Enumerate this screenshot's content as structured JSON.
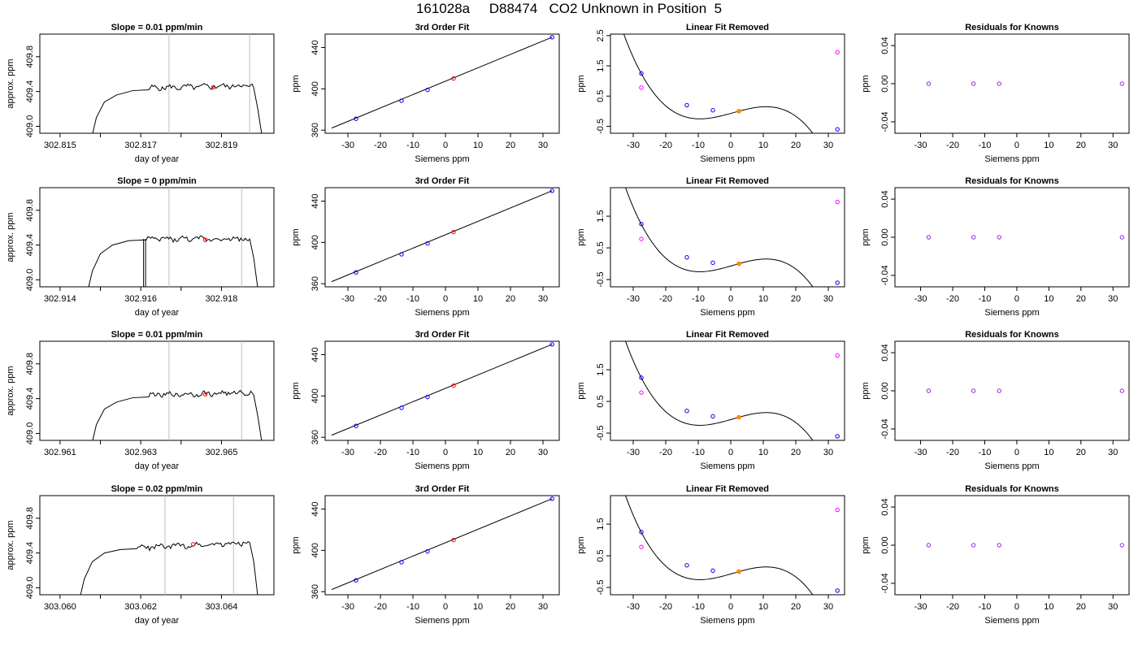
{
  "title": "161028a     D88474   CO2 Unknown in Position  5",
  "colors": {
    "trace": "#000000",
    "marker_line": "#bebebe",
    "sample_point": "#ff0000",
    "standard_point": "#0000ff",
    "unknown_point": "#ff8c00",
    "raw_point": "#ff00ff",
    "residual_point": "#8a2be2"
  },
  "chart_data": [
    {
      "type": "line",
      "row": 1,
      "kind": "timeseries",
      "title": "Slope =  0.01  ppm/min",
      "xlabel": "day of year",
      "ylabel": "approx. ppm",
      "xlim": [
        302.8145,
        302.8203
      ],
      "ylim": [
        408.92,
        410.06
      ],
      "xticks": [
        302.815,
        302.816,
        302.817,
        302.818,
        302.819
      ],
      "xtick_labels": [
        "302.815",
        "",
        "302.817",
        "",
        "302.819"
      ],
      "yticks": [
        409.0,
        409.4,
        409.8
      ],
      "ytick_labels": [
        "409.0",
        "409.4",
        "409.8"
      ],
      "window": [
        302.8177,
        302.8197
      ],
      "mean_point": {
        "x": 302.8188,
        "y": 409.45
      },
      "trace": {
        "start": 302.8158,
        "end": 302.8199,
        "level": 409.44,
        "rise": [
          [
            302.8158,
            408.9
          ],
          [
            302.8159,
            409.1
          ],
          [
            302.8161,
            409.28
          ],
          [
            302.8164,
            409.36
          ],
          [
            302.8168,
            409.41
          ],
          [
            302.8172,
            409.42
          ]
        ],
        "fall": [
          [
            302.8198,
            409.44
          ],
          [
            302.8199,
            409.2
          ],
          [
            302.82,
            408.9
          ]
        ],
        "trend": 0.01,
        "noise": 0.025,
        "spikes": []
      }
    },
    {
      "type": "scatter",
      "row": 1,
      "kind": "fit",
      "title": "3rd Order Fit",
      "xlabel": "Siemens ppm",
      "ylabel": "ppm",
      "xlim": [
        -37,
        35
      ],
      "ylim": [
        357,
        453
      ],
      "xticks": [
        -30,
        -20,
        -10,
        0,
        10,
        20,
        30
      ],
      "yticks": [
        360,
        400,
        440
      ],
      "standards": [
        {
          "x": -27.5,
          "y": 371.0
        },
        {
          "x": -13.5,
          "y": 388.5
        },
        {
          "x": -5.5,
          "y": 399.0
        },
        {
          "x": 32.8,
          "y": 450.0
        }
      ],
      "unknown": {
        "x": 2.5,
        "y": 410.0
      },
      "line": [
        [
          -35,
          362.0
        ],
        [
          32.8,
          450.0
        ]
      ]
    },
    {
      "type": "scatter",
      "row": 1,
      "kind": "residual_curve",
      "title": "Linear Fit Removed",
      "xlabel": "Siemens ppm",
      "ylabel": "ppm",
      "xlim": [
        -37,
        35
      ],
      "ylim": [
        -0.73,
        2.55
      ],
      "xticks": [
        -30,
        -20,
        -10,
        0,
        10,
        20,
        30
      ],
      "yticks": [
        -0.5,
        0.5,
        1.5,
        2.5
      ],
      "cubic": {
        "center": 7,
        "a": -9.5e-05,
        "b": -0.0018,
        "c": 0.0182,
        "xmin": -35.5,
        "xmax": 32.8
      },
      "standards": [
        {
          "x": -27.5,
          "y": 1.25
        },
        {
          "x": -13.5,
          "y": 0.2
        },
        {
          "x": -5.5,
          "y": 0.03
        },
        {
          "x": 32.8,
          "y": -0.6
        }
      ],
      "unknown": {
        "x": 2.5,
        "y": 0.0
      },
      "raw": [
        {
          "x": -27.5,
          "y": 0.78
        },
        {
          "x": 32.8,
          "y": 1.95
        }
      ]
    },
    {
      "type": "scatter",
      "row": 1,
      "kind": "knowns",
      "title": "Residuals for Knowns",
      "xlabel": "Siemens ppm",
      "ylabel": "ppm",
      "xlim": [
        -38,
        35
      ],
      "ylim": [
        -0.052,
        0.052
      ],
      "xticks": [
        -30,
        -20,
        -10,
        0,
        10,
        20,
        30
      ],
      "yticks": [
        -0.04,
        0.0,
        0.04
      ],
      "ytick_labels": [
        "-0.04",
        "0.00",
        "0.04"
      ],
      "points": [
        {
          "x": -27.5,
          "y": 0.0
        },
        {
          "x": -13.5,
          "y": 0.0
        },
        {
          "x": -5.5,
          "y": 0.0
        },
        {
          "x": 32.8,
          "y": 0.0
        }
      ]
    },
    {
      "type": "line",
      "row": 2,
      "kind": "timeseries",
      "title": "Slope =  0  ppm/min",
      "xlabel": "day of year",
      "ylabel": "approx. ppm",
      "xlim": [
        302.9135,
        302.9193
      ],
      "ylim": [
        408.92,
        410.06
      ],
      "xticks": [
        302.914,
        302.915,
        302.916,
        302.917,
        302.918
      ],
      "xtick_labels": [
        "302.914",
        "",
        "302.916",
        "",
        "302.918"
      ],
      "yticks": [
        409.0,
        409.4,
        409.8
      ],
      "ytick_labels": [
        "409.0",
        "409.4",
        "409.8"
      ],
      "window": [
        302.9167,
        302.9185
      ],
      "mean_point": {
        "x": 302.9176,
        "y": 409.46
      },
      "trace": {
        "start": 302.9147,
        "end": 302.9189,
        "level": 409.47,
        "rise": [
          [
            302.9147,
            408.9
          ],
          [
            302.9148,
            409.1
          ],
          [
            302.915,
            409.3
          ],
          [
            302.9153,
            409.4
          ],
          [
            302.9157,
            409.45
          ],
          [
            302.9161,
            409.46
          ]
        ],
        "fall": [
          [
            302.9187,
            409.47
          ],
          [
            302.9188,
            409.25
          ],
          [
            302.9189,
            408.9
          ]
        ],
        "trend": 0.0,
        "noise": 0.025,
        "spikes": [
          [
            302.91607,
            408.9
          ],
          [
            302.91612,
            408.9
          ]
        ]
      }
    },
    {
      "type": "scatter",
      "row": 2,
      "kind": "fit",
      "title": "3rd Order Fit",
      "xlabel": "Siemens ppm",
      "ylabel": "ppm",
      "xlim": [
        -37,
        35
      ],
      "ylim": [
        357,
        453
      ],
      "xticks": [
        -30,
        -20,
        -10,
        0,
        10,
        20,
        30
      ],
      "yticks": [
        360,
        400,
        440
      ],
      "standards": [
        {
          "x": -27.5,
          "y": 371.0
        },
        {
          "x": -13.5,
          "y": 388.5
        },
        {
          "x": -5.5,
          "y": 399.0
        },
        {
          "x": 32.8,
          "y": 450.0
        }
      ],
      "unknown": {
        "x": 2.5,
        "y": 410.0
      },
      "line": [
        [
          -35,
          362.0
        ],
        [
          32.8,
          450.0
        ]
      ]
    },
    {
      "type": "scatter",
      "row": 2,
      "kind": "residual_curve",
      "title": "Linear Fit Removed",
      "xlabel": "Siemens ppm",
      "ylabel": "ppm",
      "xlim": [
        -37,
        35
      ],
      "ylim": [
        -0.73,
        2.4
      ],
      "xticks": [
        -30,
        -20,
        -10,
        0,
        10,
        20,
        30
      ],
      "yticks": [
        -0.5,
        0.5,
        1.5
      ],
      "cubic": {
        "center": 7,
        "a": -9.5e-05,
        "b": -0.0018,
        "c": 0.0182,
        "xmin": -35.5,
        "xmax": 32.8
      },
      "standards": [
        {
          "x": -27.5,
          "y": 1.25
        },
        {
          "x": -13.5,
          "y": 0.2
        },
        {
          "x": -5.5,
          "y": 0.03
        },
        {
          "x": 32.8,
          "y": -0.6
        }
      ],
      "unknown": {
        "x": 2.5,
        "y": 0.0
      },
      "raw": [
        {
          "x": -27.5,
          "y": 0.78
        },
        {
          "x": 32.8,
          "y": 1.95
        }
      ]
    },
    {
      "type": "scatter",
      "row": 2,
      "kind": "knowns",
      "title": "Residuals for Knowns",
      "xlabel": "Siemens ppm",
      "ylabel": "ppm",
      "xlim": [
        -38,
        35
      ],
      "ylim": [
        -0.052,
        0.052
      ],
      "xticks": [
        -30,
        -20,
        -10,
        0,
        10,
        20,
        30
      ],
      "yticks": [
        -0.04,
        0.0,
        0.04
      ],
      "ytick_labels": [
        "-0.04",
        "0.00",
        "0.04"
      ],
      "points": [
        {
          "x": -27.5,
          "y": 0.0
        },
        {
          "x": -13.5,
          "y": 0.0
        },
        {
          "x": -5.5,
          "y": 0.0
        },
        {
          "x": 32.8,
          "y": 0.0
        }
      ]
    },
    {
      "type": "line",
      "row": 3,
      "kind": "timeseries",
      "title": "Slope =  0.01  ppm/min",
      "xlabel": "day of year",
      "ylabel": "approx. ppm",
      "xlim": [
        302.9605,
        302.9663
      ],
      "ylim": [
        408.92,
        410.06
      ],
      "xticks": [
        302.961,
        302.962,
        302.963,
        302.964,
        302.965
      ],
      "xtick_labels": [
        "302.961",
        "",
        "302.963",
        "",
        "302.965"
      ],
      "yticks": [
        409.0,
        409.4,
        409.8
      ],
      "ytick_labels": [
        "409.0",
        "409.4",
        "409.8"
      ],
      "window": [
        302.9637,
        302.9655
      ],
      "mean_point": {
        "x": 302.9646,
        "y": 409.45
      },
      "trace": {
        "start": 302.9618,
        "end": 302.966,
        "level": 409.44,
        "rise": [
          [
            302.9618,
            408.9
          ],
          [
            302.9619,
            409.1
          ],
          [
            302.9621,
            409.28
          ],
          [
            302.9624,
            409.36
          ],
          [
            302.9628,
            409.41
          ],
          [
            302.9632,
            409.42
          ]
        ],
        "fall": [
          [
            302.9658,
            409.44
          ],
          [
            302.9659,
            409.2
          ],
          [
            302.966,
            408.9
          ]
        ],
        "trend": 0.01,
        "noise": 0.025,
        "spikes": []
      }
    },
    {
      "type": "scatter",
      "row": 3,
      "kind": "fit",
      "title": "3rd Order Fit",
      "xlabel": "Siemens ppm",
      "ylabel": "ppm",
      "xlim": [
        -37,
        35
      ],
      "ylim": [
        357,
        453
      ],
      "xticks": [
        -30,
        -20,
        -10,
        0,
        10,
        20,
        30
      ],
      "yticks": [
        360,
        400,
        440
      ],
      "standards": [
        {
          "x": -27.5,
          "y": 371.0
        },
        {
          "x": -13.5,
          "y": 388.5
        },
        {
          "x": -5.5,
          "y": 399.0
        },
        {
          "x": 32.8,
          "y": 450.0
        }
      ],
      "unknown": {
        "x": 2.5,
        "y": 410.0
      },
      "line": [
        [
          -35,
          362.0
        ],
        [
          32.8,
          450.0
        ]
      ]
    },
    {
      "type": "scatter",
      "row": 3,
      "kind": "residual_curve",
      "title": "Linear Fit Removed",
      "xlabel": "Siemens ppm",
      "ylabel": "ppm",
      "xlim": [
        -37,
        35
      ],
      "ylim": [
        -0.73,
        2.4
      ],
      "xticks": [
        -30,
        -20,
        -10,
        0,
        10,
        20,
        30
      ],
      "yticks": [
        -0.5,
        0.5,
        1.5
      ],
      "cubic": {
        "center": 7,
        "a": -9.5e-05,
        "b": -0.0018,
        "c": 0.0182,
        "xmin": -35.5,
        "xmax": 32.8
      },
      "standards": [
        {
          "x": -27.5,
          "y": 1.25
        },
        {
          "x": -13.5,
          "y": 0.2
        },
        {
          "x": -5.5,
          "y": 0.03
        },
        {
          "x": 32.8,
          "y": -0.6
        }
      ],
      "unknown": {
        "x": 2.5,
        "y": 0.0
      },
      "raw": [
        {
          "x": -27.5,
          "y": 0.78
        },
        {
          "x": 32.8,
          "y": 1.95
        }
      ]
    },
    {
      "type": "scatter",
      "row": 3,
      "kind": "knowns",
      "title": "Residuals for Knowns",
      "xlabel": "Siemens ppm",
      "ylabel": "ppm",
      "xlim": [
        -38,
        35
      ],
      "ylim": [
        -0.052,
        0.052
      ],
      "xticks": [
        -30,
        -20,
        -10,
        0,
        10,
        20,
        30
      ],
      "yticks": [
        -0.04,
        0.0,
        0.04
      ],
      "ytick_labels": [
        "-0.04",
        "0.00",
        "0.04"
      ],
      "points": [
        {
          "x": -27.5,
          "y": 0.0
        },
        {
          "x": -13.5,
          "y": 0.0
        },
        {
          "x": -5.5,
          "y": 0.0
        },
        {
          "x": 32.8,
          "y": 0.0
        }
      ]
    },
    {
      "type": "line",
      "row": 4,
      "kind": "timeseries",
      "title": "Slope =  0.02  ppm/min",
      "xlabel": "day of year",
      "ylabel": "approx. ppm",
      "xlim": [
        303.0595,
        303.0653
      ],
      "ylim": [
        408.92,
        410.06
      ],
      "xticks": [
        303.06,
        303.061,
        303.062,
        303.063,
        303.064
      ],
      "xtick_labels": [
        "303.060",
        "",
        "303.062",
        "",
        "303.064"
      ],
      "yticks": [
        409.0,
        409.4,
        409.8
      ],
      "ytick_labels": [
        "409.0",
        "409.4",
        "409.8"
      ],
      "window": [
        303.0626,
        303.0643
      ],
      "mean_point": {
        "x": 303.0633,
        "y": 409.5
      },
      "trace": {
        "start": 303.0605,
        "end": 303.0649,
        "level": 409.46,
        "rise": [
          [
            303.0605,
            408.9
          ],
          [
            303.0606,
            409.1
          ],
          [
            303.0608,
            409.3
          ],
          [
            303.0611,
            409.4
          ],
          [
            303.0615,
            409.44
          ],
          [
            303.0619,
            409.45
          ]
        ],
        "fall": [
          [
            303.0647,
            409.52
          ],
          [
            303.0648,
            409.3
          ],
          [
            303.0649,
            408.9
          ]
        ],
        "trend": 0.02,
        "noise": 0.025,
        "spikes": []
      }
    },
    {
      "type": "scatter",
      "row": 4,
      "kind": "fit",
      "title": "3rd Order Fit",
      "xlabel": "Siemens ppm",
      "ylabel": "ppm",
      "xlim": [
        -37,
        35
      ],
      "ylim": [
        357,
        453
      ],
      "xticks": [
        -30,
        -20,
        -10,
        0,
        10,
        20,
        30
      ],
      "yticks": [
        360,
        400,
        440
      ],
      "standards": [
        {
          "x": -27.5,
          "y": 371.0
        },
        {
          "x": -13.5,
          "y": 388.5
        },
        {
          "x": -5.5,
          "y": 399.0
        },
        {
          "x": 32.8,
          "y": 450.0
        }
      ],
      "unknown": {
        "x": 2.5,
        "y": 410.0
      },
      "line": [
        [
          -35,
          362.0
        ],
        [
          32.8,
          450.0
        ]
      ]
    },
    {
      "type": "scatter",
      "row": 4,
      "kind": "residual_curve",
      "title": "Linear Fit Removed",
      "xlabel": "Siemens ppm",
      "ylabel": "ppm",
      "xlim": [
        -37,
        35
      ],
      "ylim": [
        -0.73,
        2.4
      ],
      "xticks": [
        -30,
        -20,
        -10,
        0,
        10,
        20,
        30
      ],
      "yticks": [
        -0.5,
        0.5,
        1.5
      ],
      "cubic": {
        "center": 7,
        "a": -9.5e-05,
        "b": -0.0018,
        "c": 0.0182,
        "xmin": -35.5,
        "xmax": 32.8
      },
      "standards": [
        {
          "x": -27.5,
          "y": 1.25
        },
        {
          "x": -13.5,
          "y": 0.2
        },
        {
          "x": -5.5,
          "y": 0.03
        },
        {
          "x": 32.8,
          "y": -0.6
        }
      ],
      "unknown": {
        "x": 2.5,
        "y": 0.0
      },
      "raw": [
        {
          "x": -27.5,
          "y": 0.78
        },
        {
          "x": 32.8,
          "y": 1.95
        }
      ]
    },
    {
      "type": "scatter",
      "row": 4,
      "kind": "knowns",
      "title": "Residuals for Knowns",
      "xlabel": "Siemens ppm",
      "ylabel": "ppm",
      "xlim": [
        -38,
        35
      ],
      "ylim": [
        -0.052,
        0.052
      ],
      "xticks": [
        -30,
        -20,
        -10,
        0,
        10,
        20,
        30
      ],
      "yticks": [
        -0.04,
        0.0,
        0.04
      ],
      "ytick_labels": [
        "-0.04",
        "0.00",
        "0.04"
      ],
      "points": [
        {
          "x": -27.5,
          "y": 0.0
        },
        {
          "x": -13.5,
          "y": 0.0
        },
        {
          "x": -5.5,
          "y": 0.0
        },
        {
          "x": 32.8,
          "y": 0.0
        }
      ]
    }
  ]
}
